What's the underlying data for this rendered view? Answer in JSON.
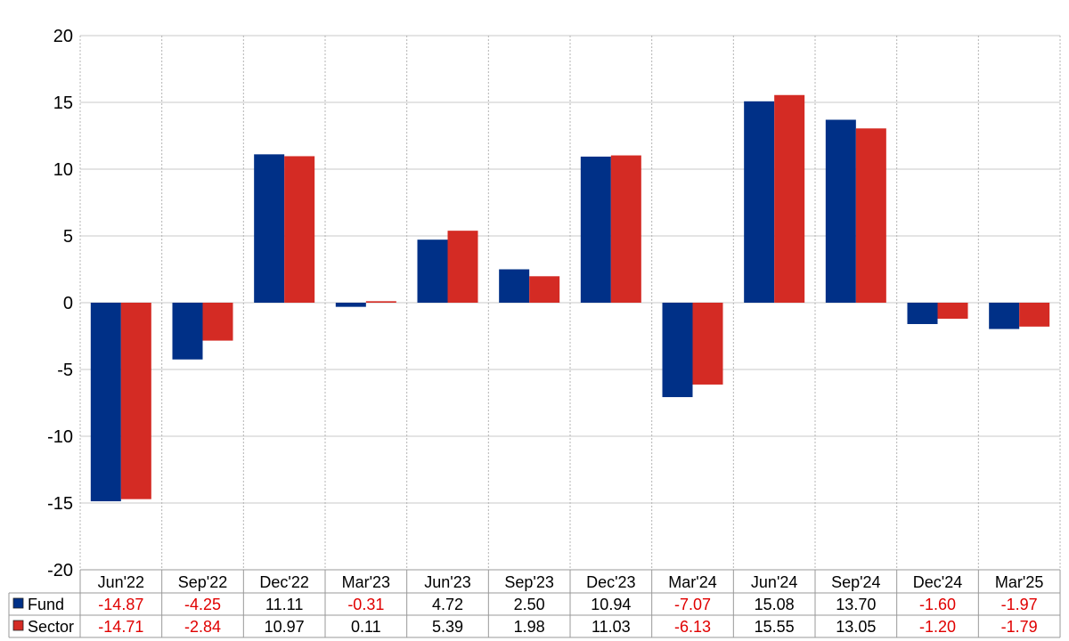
{
  "chart_data": {
    "type": "bar",
    "categories": [
      "Jun'22",
      "Sep'22",
      "Dec'22",
      "Mar'23",
      "Jun'23",
      "Sep'23",
      "Dec'23",
      "Mar'24",
      "Jun'24",
      "Sep'24",
      "Dec'24",
      "Mar'25"
    ],
    "series": [
      {
        "name": "Fund",
        "color": "#003087",
        "values": [
          -14.87,
          -4.25,
          11.11,
          -0.31,
          4.72,
          2.5,
          10.94,
          -7.07,
          15.08,
          13.7,
          -1.6,
          -1.97
        ],
        "labels": [
          "-14.87",
          "-4.25",
          "11.11",
          "-0.31",
          "4.72",
          "2.50",
          "10.94",
          "-7.07",
          "15.08",
          "13.70",
          "-1.60",
          "-1.97"
        ]
      },
      {
        "name": "Sector",
        "color": "#d42b24",
        "values": [
          -14.71,
          -2.84,
          10.97,
          0.11,
          5.39,
          1.98,
          11.03,
          -6.13,
          15.55,
          13.05,
          -1.2,
          -1.79
        ],
        "labels": [
          "-14.71",
          "-2.84",
          "10.97",
          "0.11",
          "5.39",
          "1.98",
          "11.03",
          "-6.13",
          "15.55",
          "13.05",
          "-1.20",
          "-1.79"
        ]
      }
    ],
    "ylim": [
      -20,
      20
    ],
    "yticks": [
      "20",
      "15",
      "10",
      "5",
      "0",
      "-5",
      "-10",
      "-15",
      "-20"
    ],
    "grid": true,
    "legend": "data-table-bottom",
    "negative_color": "#e00000",
    "positive_color": "#000000"
  }
}
